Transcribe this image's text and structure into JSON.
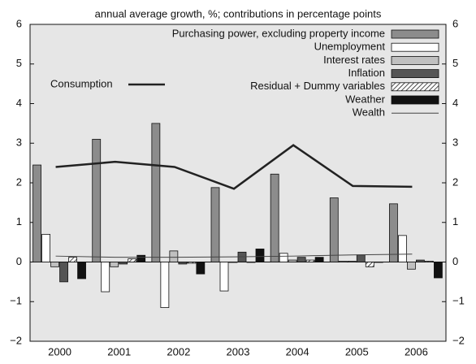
{
  "chart_data": {
    "type": "bar",
    "title": "annual average growth, %; contributions in percentage points",
    "categories": [
      "2000",
      "2001",
      "2002",
      "2003",
      "2004",
      "2005",
      "2006"
    ],
    "ylim": [
      -2,
      6
    ],
    "yticks": [
      {
        "value": -2,
        "label": "−2"
      },
      {
        "value": -1,
        "label": "−1"
      },
      0,
      1,
      2,
      3,
      4,
      5,
      6
    ],
    "y2lim": [
      -2,
      6
    ],
    "y2ticks": [
      {
        "value": -2,
        "label": "−2"
      },
      {
        "value": -1,
        "label": "−1"
      },
      0,
      1,
      2,
      3,
      4,
      5,
      6
    ],
    "series": [
      {
        "name": "Purchasing power, excluding property income",
        "type": "bar",
        "color": "#8c8c8c",
        "values": [
          2.45,
          3.1,
          3.5,
          1.88,
          2.22,
          1.62,
          1.47
        ]
      },
      {
        "name": "Unemployment",
        "type": "bar",
        "color": "#ffffff",
        "values": [
          0.7,
          -0.75,
          -1.15,
          -0.73,
          0.22,
          0.02,
          0.67
        ]
      },
      {
        "name": "Interest rates",
        "type": "bar",
        "color": "#c0c0c0",
        "values": [
          -0.12,
          -0.12,
          0.28,
          0.0,
          0.05,
          0.02,
          -0.18
        ]
      },
      {
        "name": "Inflation",
        "type": "bar",
        "color": "#555555",
        "values": [
          -0.5,
          -0.05,
          -0.05,
          0.25,
          0.12,
          0.18,
          0.05
        ]
      },
      {
        "name": "Residual + Dummy variables",
        "type": "bar",
        "color": "#ffffff",
        "pattern": "hatch",
        "values": [
          0.12,
          0.08,
          -0.03,
          0.0,
          0.05,
          -0.12,
          0.02
        ]
      },
      {
        "name": "Weather",
        "type": "bar",
        "color": "#111111",
        "values": [
          -0.42,
          0.17,
          -0.3,
          0.33,
          0.12,
          0.0,
          -0.4
        ]
      },
      {
        "name": "Consumption",
        "type": "line",
        "color": "#222222",
        "linewidth": 2.5,
        "values": [
          2.4,
          2.53,
          2.4,
          1.85,
          2.95,
          1.92,
          1.9
        ]
      },
      {
        "name": "Wealth",
        "type": "line",
        "color": "#444444",
        "linewidth": 1,
        "values": [
          0.15,
          0.12,
          0.12,
          0.13,
          0.15,
          0.18,
          0.2
        ]
      }
    ]
  }
}
